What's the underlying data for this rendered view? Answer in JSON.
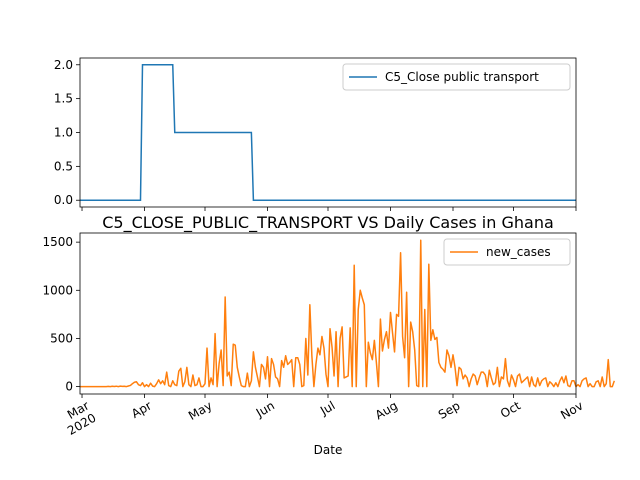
{
  "chart_data": [
    {
      "type": "line",
      "title": "",
      "xlabel": "",
      "ylabel": "",
      "xlim": [
        "2020-02-29",
        "2020-11-01"
      ],
      "ylim": [
        -0.1,
        2.1
      ],
      "yticks": [
        0.0,
        0.5,
        1.0,
        1.5,
        2.0
      ],
      "ytick_labels": [
        "0.0",
        "0.5",
        "1.0",
        "1.5",
        "2.0"
      ],
      "grid": false,
      "legend": "upper-right",
      "series": [
        {
          "name": "C5_Close public transport",
          "color": "#1f77b4",
          "step": true,
          "points": [
            [
              "2020-02-29",
              0
            ],
            [
              "2020-03-30",
              0
            ],
            [
              "2020-03-31",
              2
            ],
            [
              "2020-04-15",
              2
            ],
            [
              "2020-04-16",
              1
            ],
            [
              "2020-05-24",
              1
            ],
            [
              "2020-05-25",
              0
            ],
            [
              "2020-11-01",
              0
            ]
          ]
        }
      ]
    },
    {
      "type": "line",
      "title": "C5_CLOSE_PUBLIC_TRANSPORT VS Daily Cases in Ghana",
      "xlabel": "Date",
      "ylabel": "",
      "xlim": [
        "2020-02-29",
        "2020-11-01"
      ],
      "ylim": [
        -77,
        1595
      ],
      "yticks": [
        0,
        500,
        1000,
        1500
      ],
      "ytick_labels": [
        "0",
        "500",
        "1000",
        "1500"
      ],
      "xtick_dates": [
        "2020-03-01",
        "2020-04-01",
        "2020-05-01",
        "2020-06-01",
        "2020-07-01",
        "2020-08-01",
        "2020-09-01",
        "2020-10-01",
        "2020-11-01"
      ],
      "xtick_labels": [
        "Mar\n2020",
        "Apr",
        "May",
        "Jun",
        "Jul",
        "Aug",
        "Sep",
        "Oct",
        "Nov"
      ],
      "grid": false,
      "legend": "upper-right",
      "series": [
        {
          "name": "new_cases",
          "color": "#ff7f0e",
          "start_date": "2020-02-29",
          "values": [
            0,
            0,
            0,
            0,
            0,
            0,
            0,
            0,
            0,
            0,
            0,
            0,
            0,
            0,
            2,
            0,
            3,
            1,
            4,
            0,
            5,
            2,
            3,
            0,
            6,
            12,
            30,
            45,
            50,
            20,
            10,
            40,
            0,
            20,
            0,
            35,
            5,
            0,
            30,
            70,
            30,
            60,
            20,
            150,
            10,
            0,
            60,
            20,
            10,
            160,
            190,
            0,
            50,
            200,
            20,
            0,
            120,
            10,
            20,
            90,
            0,
            0,
            30,
            400,
            0,
            90,
            20,
            550,
            0,
            240,
            380,
            10,
            930,
            110,
            150,
            10,
            440,
            430,
            200,
            100,
            10,
            0,
            0,
            140,
            0,
            60,
            360,
            200,
            100,
            0,
            230,
            200,
            80,
            310,
            0,
            290,
            230,
            100,
            80,
            0,
            270,
            200,
            320,
            230,
            250,
            280,
            0,
            300,
            300,
            230,
            0,
            10,
            500,
            120,
            850,
            320,
            0,
            230,
            400,
            330,
            520,
            400,
            130,
            0,
            600,
            410,
            110,
            570,
            0,
            500,
            620,
            90,
            100,
            110,
            610,
            0,
            1260,
            0,
            800,
            1000,
            920,
            850,
            0,
            460,
            350,
            280,
            480,
            250,
            0,
            700,
            370,
            490,
            570,
            400,
            770,
            560,
            360,
            750,
            730,
            1390,
            520,
            300,
            980,
            0,
            670,
            570,
            380,
            10,
            0,
            1520,
            0,
            800,
            0,
            1270,
            480,
            590,
            490,
            510,
            250,
            200,
            180,
            150,
            380,
            320,
            200,
            330,
            200,
            10,
            200,
            180,
            80,
            120,
            90,
            0,
            80,
            130,
            110,
            20,
            90,
            150,
            150,
            120,
            0,
            170,
            90,
            20,
            40,
            200,
            0,
            100,
            80,
            290,
            60,
            0,
            120,
            70,
            0,
            110,
            130,
            40,
            60,
            80,
            100,
            0,
            100,
            20,
            0,
            90,
            10,
            60,
            80,
            90,
            0,
            50,
            30,
            0,
            40,
            0,
            60,
            100,
            40,
            110,
            10,
            0,
            60,
            60,
            0,
            20,
            0,
            60,
            80,
            90,
            0,
            30,
            0,
            0,
            50,
            60,
            0,
            100,
            0,
            30,
            280,
            0,
            0,
            60
          ]
        }
      ]
    }
  ]
}
